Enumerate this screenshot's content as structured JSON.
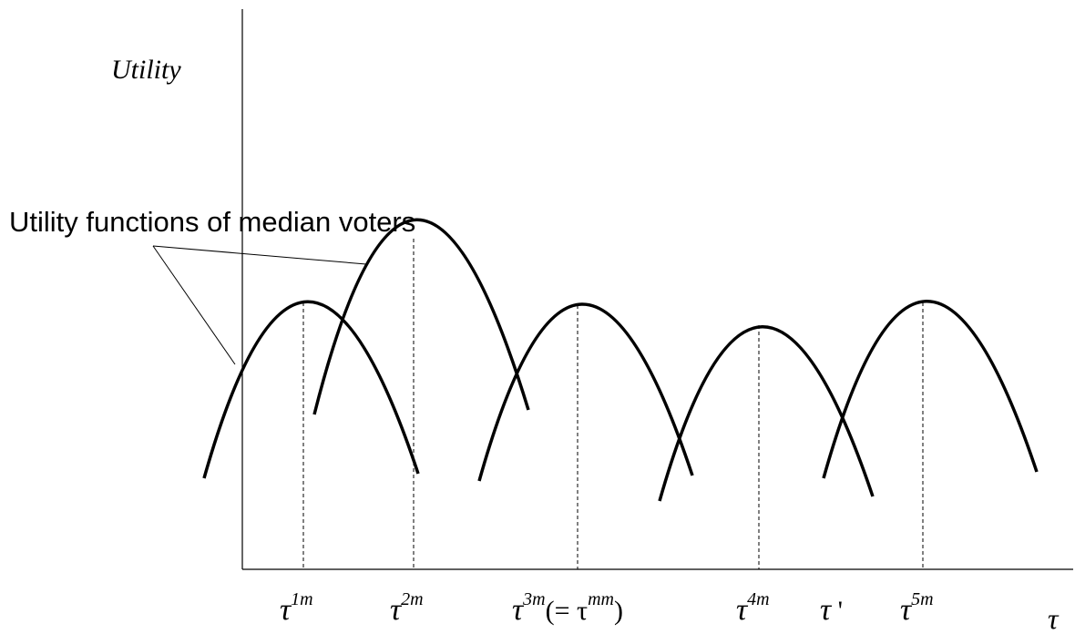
{
  "axes": {
    "y_label": "Utility",
    "x_label": "τ"
  },
  "annotation": {
    "text": "Utility functions of median voters"
  },
  "ticks": [
    {
      "id": "t1",
      "symbol": "τ",
      "superscript": "1m",
      "suffix": ""
    },
    {
      "id": "t2",
      "symbol": "τ",
      "superscript": "2m",
      "suffix": ""
    },
    {
      "id": "t3",
      "symbol": "τ",
      "superscript": "3m",
      "suffix": "(= τ",
      "suffix_superscript": "mm",
      "suffix_close": ")"
    },
    {
      "id": "t4",
      "symbol": "τ",
      "superscript": "4m",
      "suffix": ""
    },
    {
      "id": "tp",
      "symbol": "τ",
      "superscript": "",
      "suffix": " '"
    },
    {
      "id": "t5",
      "symbol": "τ",
      "superscript": "5m",
      "suffix": ""
    }
  ],
  "colors": {
    "line": "#000000",
    "background": "#ffffff"
  }
}
